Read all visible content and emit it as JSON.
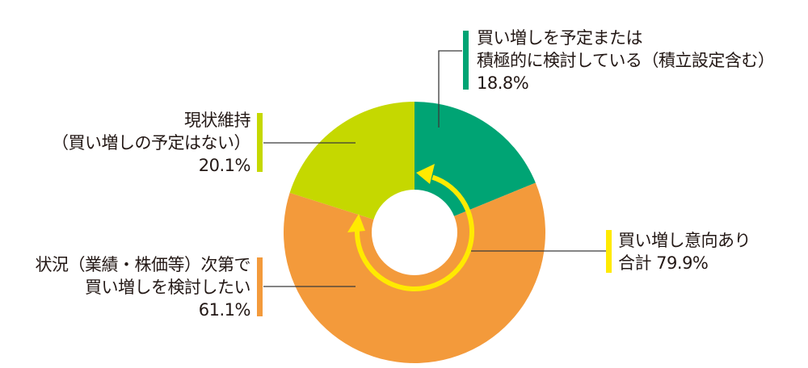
{
  "chart_data": {
    "type": "pie",
    "variant": "donut",
    "title": "",
    "start_angle": "12 o'clock, clockwise",
    "slices": [
      {
        "name": "買い増しを予定または積極的に検討している（積立設定含む）",
        "value": 18.8,
        "color": "#00A474"
      },
      {
        "name": "状況（業績・株価等）次第で買い増しを検討したい",
        "value": 61.1,
        "color": "#F39A3B"
      },
      {
        "name": "現状維持（買い増しの予定はない）",
        "value": 20.1,
        "color": "#C5D800"
      }
    ],
    "annotation": {
      "text": "買い増し意向あり 合計 79.9%",
      "value": 79.9,
      "covers": [
        "買い増しを予定または積極的に検討している（積立設定含む）",
        "状況（業績・株価等）次第で買い増しを検討したい"
      ],
      "arrow_color": "#FFEA00"
    },
    "legend": "callout labels with colored bars"
  },
  "labels": {
    "planned": {
      "line1": "買い増しを予定または",
      "line2": "積極的に検討している（積立設定含む）",
      "value": "18.8%",
      "bar_color": "#00A474"
    },
    "maintain": {
      "line1": "現状維持",
      "line2": "（買い増しの予定はない）",
      "value": "20.1%",
      "bar_color": "#C5D800"
    },
    "conditional": {
      "line1": "状況（業績・株価等）次第で",
      "line2": "買い増しを検討したい",
      "value": "61.1%",
      "bar_color": "#F39A3B"
    },
    "total": {
      "line1": "買い増し意向あり",
      "line2": "合計 79.9%",
      "bar_color": "#FFEA00"
    }
  }
}
